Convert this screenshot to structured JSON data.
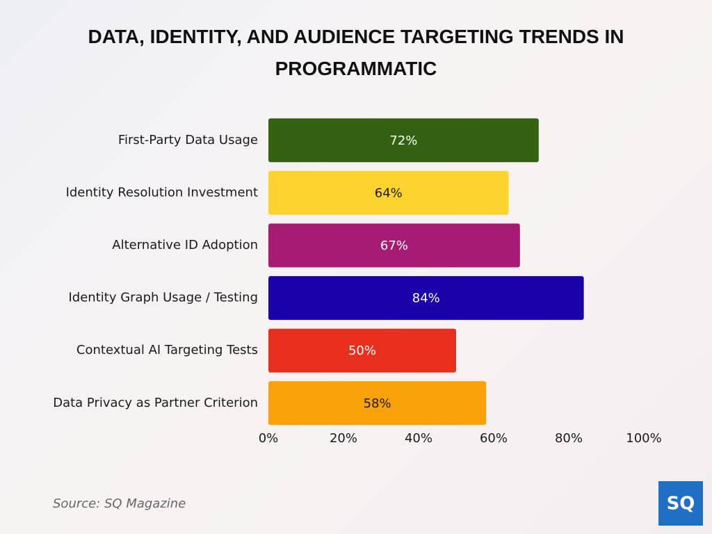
{
  "chart_data": {
    "type": "bar",
    "orientation": "horizontal",
    "title": "DATA, IDENTITY, AND AUDIENCE TARGETING TRENDS IN PROGRAMMATIC",
    "categories": [
      "First-Party Data Usage",
      "Identity Resolution Investment",
      "Alternative ID Adoption",
      "Identity Graph Usage / Testing",
      "Contextual AI Targeting Tests",
      "Data Privacy as Partner Criterion"
    ],
    "values": [
      72,
      64,
      67,
      84,
      50,
      58
    ],
    "value_labels": [
      "72%",
      "64%",
      "67%",
      "84%",
      "50%",
      "58%"
    ],
    "colors": [
      "#336311",
      "#fed22f",
      "#a61b74",
      "#1a00a8",
      "#e8301f",
      "#fba109"
    ],
    "xlim": [
      0,
      100
    ],
    "xticks": [
      {
        "value": 0,
        "label": "0%"
      },
      {
        "value": 20,
        "label": "20%"
      },
      {
        "value": 40,
        "label": "40%"
      },
      {
        "value": 60,
        "label": "60%"
      },
      {
        "value": 80,
        "label": "80%"
      },
      {
        "value": 100,
        "label": "100%"
      }
    ],
    "grid": false,
    "source": "Source: SQ Magazine",
    "logo": "SQ"
  }
}
